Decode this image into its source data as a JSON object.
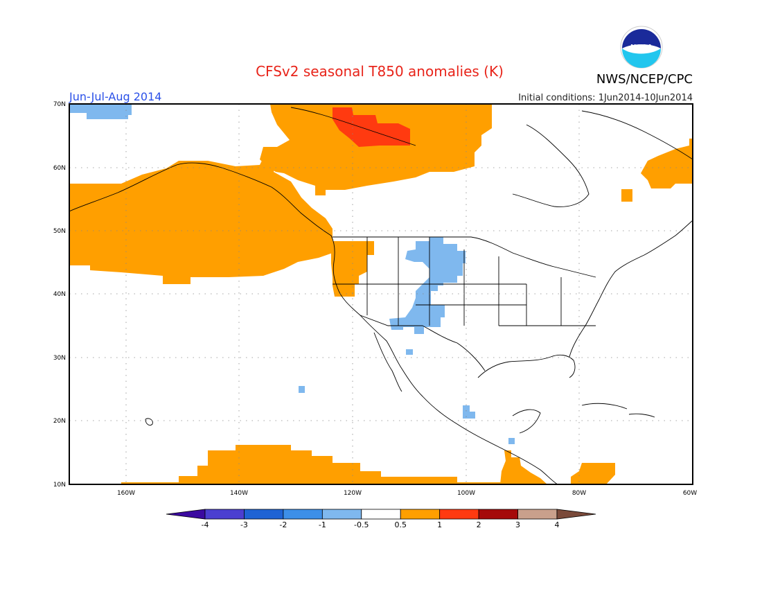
{
  "title": "CFSv2 seasonal T850 anomalies (K)",
  "agency": "NWS/NCEP/CPC",
  "logo_text": "NOAA",
  "season": "Jun-Jul-Aug 2014",
  "initial_conditions": "Initial conditions: 1Jun2014-10Jun2014",
  "map": {
    "lat_ticks": [
      "70N",
      "60N",
      "50N",
      "40N",
      "30N",
      "20N",
      "10N"
    ],
    "lon_ticks": [
      "160W",
      "140W",
      "120W",
      "100W",
      "80W",
      "60W"
    ]
  },
  "colorbar": {
    "colors": [
      "#3b0aa0",
      "#4b3fd0",
      "#1e63d4",
      "#3d8fe8",
      "#7fb8ee",
      "#ffffff",
      "#ff9f00",
      "#ff3a10",
      "#a50a0a",
      "#c9a08c",
      "#7a4a3a"
    ],
    "labels": [
      "-4",
      "-3",
      "-2",
      "-1",
      "-0.5",
      "0.5",
      "1",
      "2",
      "3",
      "4"
    ]
  },
  "colors": {
    "title": "#e8241a",
    "season": "#2a50e8",
    "warm": "#ff9f00",
    "hot": "#ff3a10",
    "cool": "#7fb8ee"
  }
}
